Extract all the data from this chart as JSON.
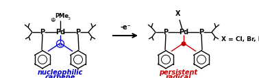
{
  "bg_color": "#ffffff",
  "blue_color": "#0000cc",
  "red_color": "#cc0000",
  "black_color": "#000000",
  "arrow_text": "-e⁻",
  "left_label_line1": "nucleophilic",
  "left_label_line2": "carbene",
  "right_label_line1": "persistent",
  "right_label_line2": "radical",
  "xeq_text": "X = Cl, Br, I",
  "pme3_text": "PMe",
  "pme3_sub": "3",
  "x_text": "X",
  "pd_text": "Pd",
  "p_text": "P",
  "plus_sign": "⊕",
  "minus_sign": "⊖",
  "figw": 3.78,
  "figh": 1.15,
  "dpi": 100
}
